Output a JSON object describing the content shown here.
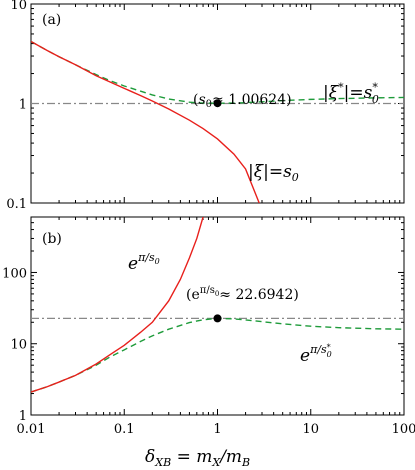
{
  "chart_data": [
    {
      "type": "line",
      "panel_label": "(a)",
      "xscale": "log",
      "yscale": "log",
      "xlim": [
        0.01,
        100
      ],
      "ylim": [
        0.1,
        10
      ],
      "xticks": [
        "0.01",
        "0.1",
        "1",
        "10",
        "100"
      ],
      "yticks": [
        "0.1",
        "1",
        "10"
      ],
      "xlabel": "δXB = mX/mB",
      "colors": {
        "red": "#e8201c",
        "green": "#1e9b3a",
        "ref": "#888888"
      },
      "series": [
        {
          "name": "|ξ|=s0",
          "style": "solid",
          "color": "#e8201c",
          "x": [
            0.01,
            0.015,
            0.02,
            0.03,
            0.05,
            0.07,
            0.1,
            0.15,
            0.2,
            0.3,
            0.5,
            0.7,
            1.0,
            1.5,
            2.0,
            2.8
          ],
          "y": [
            4.2,
            3.4,
            2.95,
            2.45,
            1.9,
            1.65,
            1.42,
            1.2,
            1.06,
            0.88,
            0.68,
            0.56,
            0.44,
            0.31,
            0.22,
            0.1
          ]
        },
        {
          "name": "|ξ*|=s0*",
          "style": "dashed",
          "color": "#1e9b3a",
          "x": [
            0.01,
            0.015,
            0.02,
            0.03,
            0.05,
            0.07,
            0.1,
            0.15,
            0.2,
            0.3,
            0.5,
            0.7,
            1.0,
            1.5,
            2.0,
            3.0,
            5.0,
            10,
            20,
            50,
            100
          ],
          "y": [
            4.2,
            3.4,
            2.95,
            2.45,
            1.95,
            1.7,
            1.5,
            1.33,
            1.22,
            1.11,
            1.03,
            1.01,
            1.006,
            1.01,
            1.02,
            1.04,
            1.07,
            1.1,
            1.12,
            1.14,
            1.15
          ]
        },
        {
          "name": "reference",
          "style": "dash-dot",
          "color": "#888888",
          "x": [
            0.01,
            100
          ],
          "y": [
            1.0,
            1.0
          ]
        }
      ],
      "points": [
        {
          "x": 1.0,
          "y": 1.00624
        }
      ],
      "annotations": [
        {
          "text": "(s0≈ 1.00624)",
          "x": 1.0,
          "y": 1.6
        },
        {
          "text": "|ξ*|=s0*",
          "x": 25,
          "y": 2.9
        },
        {
          "text": "|ξ|=s0",
          "x": 4.2,
          "y": 0.25
        }
      ]
    },
    {
      "type": "line",
      "panel_label": "(b)",
      "xscale": "log",
      "yscale": "log",
      "xlim": [
        0.01,
        100
      ],
      "ylim": [
        1,
        600
      ],
      "xticks": [
        "0.01",
        "0.1",
        "1",
        "10",
        "100"
      ],
      "yticks": [
        "1",
        "10",
        "100"
      ],
      "xlabel": "δXB = mX/mB",
      "series": [
        {
          "name": "eπ/s0",
          "style": "solid",
          "color": "#e8201c",
          "x": [
            0.01,
            0.015,
            0.02,
            0.03,
            0.05,
            0.07,
            0.1,
            0.15,
            0.2,
            0.3,
            0.4,
            0.5,
            0.6,
            0.7
          ],
          "y": [
            2.1,
            2.5,
            2.9,
            3.6,
            5.2,
            7.0,
            9.5,
            14.5,
            20,
            40,
            80,
            160,
            300,
            600
          ]
        },
        {
          "name": "eπ/s0*",
          "style": "dashed",
          "color": "#1e9b3a",
          "x": [
            0.01,
            0.015,
            0.02,
            0.03,
            0.05,
            0.07,
            0.1,
            0.15,
            0.2,
            0.3,
            0.5,
            0.7,
            1.0,
            1.5,
            2.0,
            3.0,
            5.0,
            10,
            20,
            50,
            100
          ],
          "y": [
            2.1,
            2.5,
            2.9,
            3.6,
            5.0,
            6.5,
            8.2,
            10.8,
            12.9,
            16.0,
            19.8,
            21.7,
            22.69,
            22.3,
            21.6,
            20.4,
            19.0,
            17.6,
            16.8,
            16.2,
            16.0
          ]
        },
        {
          "name": "reference",
          "style": "dash-dot",
          "color": "#888888",
          "x": [
            0.01,
            100
          ],
          "y": [
            22.6942,
            22.6942
          ]
        }
      ],
      "points": [
        {
          "x": 1.0,
          "y": 22.6942
        }
      ],
      "annotations": [
        {
          "text": "eπ/s0",
          "x": 0.04,
          "y": 210
        },
        {
          "text": "(eπ/s0≈ 22.6942)",
          "x": 1.0,
          "y": 44
        },
        {
          "text": "eπ/s0*",
          "x": 15,
          "y": 9
        }
      ]
    }
  ]
}
